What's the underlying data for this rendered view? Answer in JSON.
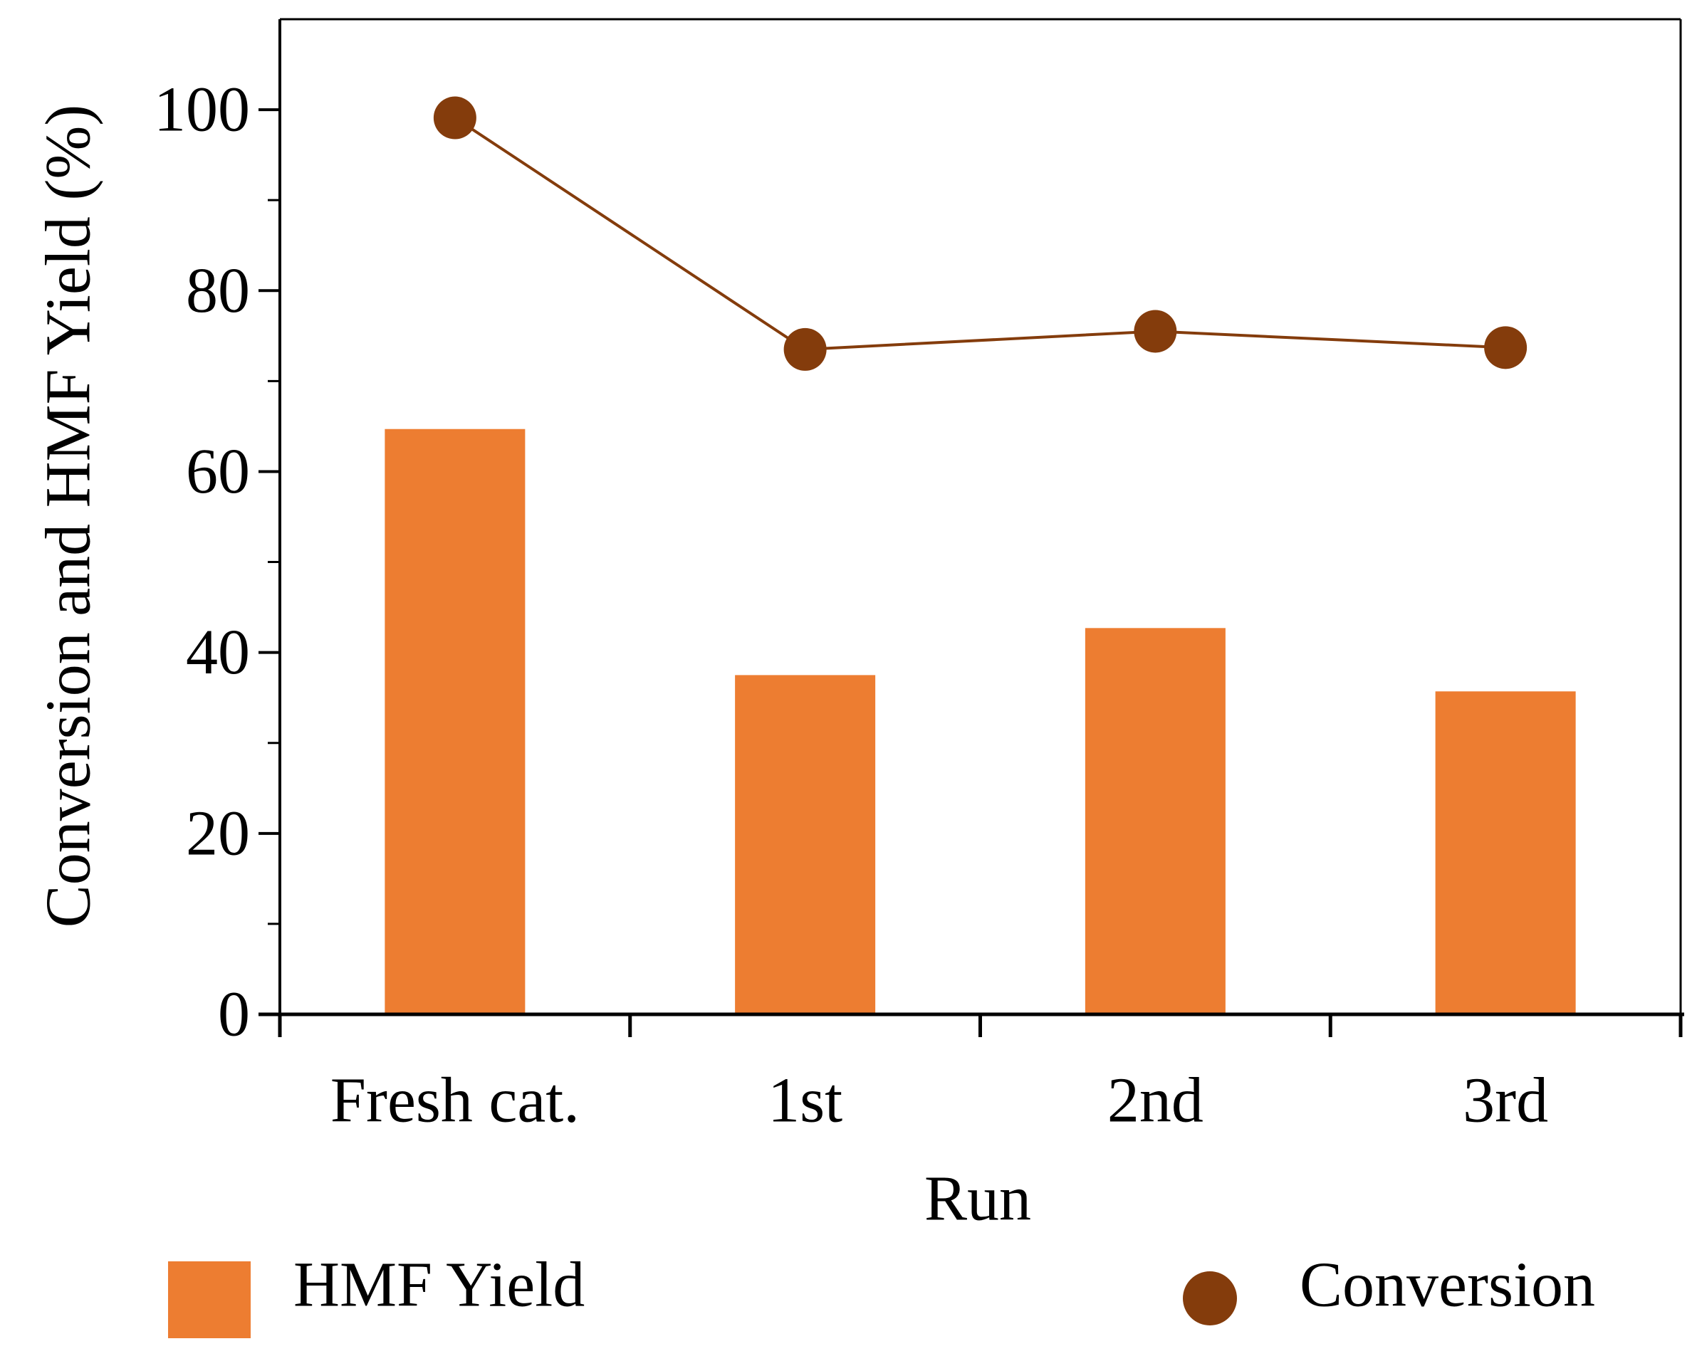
{
  "chart_data": {
    "type": "bar",
    "xlabel": "Run",
    "ylabel": "Conversion and HMF Yield (%)",
    "categories": [
      "Fresh cat.",
      "1st",
      "2nd",
      "3rd"
    ],
    "ylim": [
      0,
      110
    ],
    "yticks": [
      0,
      20,
      40,
      60,
      80,
      100
    ],
    "grid": false,
    "legend_position": "bottom",
    "series": [
      {
        "name": "HMF Yield",
        "type": "bar",
        "color": "#ED7D31",
        "values": [
          64.7,
          37.5,
          42.7,
          35.7
        ]
      },
      {
        "name": "Conversion",
        "type": "line",
        "color": "#843C0C",
        "marker": "circle",
        "values": [
          99.1,
          73.5,
          75.5,
          73.7
        ]
      }
    ]
  }
}
